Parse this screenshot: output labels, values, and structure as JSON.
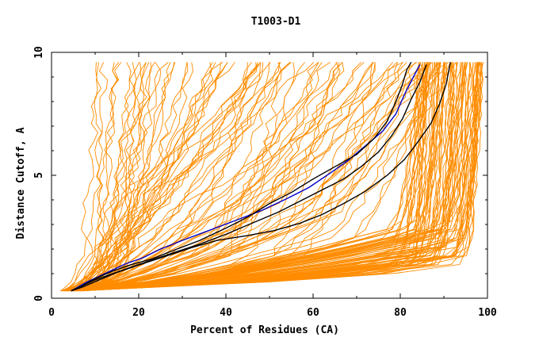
{
  "chart_data": {
    "type": "line",
    "title": "T1003-D1",
    "xlabel": "Percent of Residues (CA)",
    "ylabel": "Distance Cutoff, A",
    "xlim": [
      0,
      100
    ],
    "ylim": [
      0,
      10
    ],
    "x_ticks": [
      "0",
      "20",
      "40",
      "60",
      "80",
      "100"
    ],
    "y_ticks": [
      "0",
      "5",
      "10"
    ],
    "x_tick_values": [
      0,
      20,
      40,
      60,
      80,
      100
    ],
    "y_tick_values": [
      0,
      5,
      10
    ],
    "grid": false,
    "colors": {
      "background_series": "#ff8c00",
      "highlight_blue": "#0000cc",
      "highlight_black": "#000000",
      "axis": "#000000"
    },
    "background_series_description": "Many orange GDT curves (one per model); generated procedurally from representative shape parameters",
    "background_series_count": 170,
    "highlight_series": [
      {
        "name": "blue",
        "color": "#0000cc",
        "points": [
          [
            4.5,
            0.3
          ],
          [
            6,
            0.45
          ],
          [
            8,
            0.65
          ],
          [
            11,
            0.9
          ],
          [
            14,
            1.15
          ],
          [
            17,
            1.4
          ],
          [
            21,
            1.65
          ],
          [
            25,
            2.0
          ],
          [
            30,
            2.35
          ],
          [
            36,
            2.75
          ],
          [
            42,
            3.15
          ],
          [
            48,
            3.55
          ],
          [
            54,
            4.05
          ],
          [
            59,
            4.5
          ],
          [
            64,
            5.1
          ],
          [
            68,
            5.6
          ],
          [
            72,
            6.2
          ],
          [
            76,
            6.8
          ],
          [
            79,
            7.5
          ],
          [
            81,
            8.3
          ],
          [
            83,
            9.0
          ],
          [
            84.5,
            9.5
          ]
        ]
      },
      {
        "name": "black-1",
        "color": "#000000",
        "points": [
          [
            4.5,
            0.3
          ],
          [
            7,
            0.5
          ],
          [
            10,
            0.8
          ],
          [
            14,
            1.1
          ],
          [
            18,
            1.35
          ],
          [
            23,
            1.6
          ],
          [
            28,
            1.95
          ],
          [
            34,
            2.35
          ],
          [
            40,
            2.85
          ],
          [
            45,
            3.3
          ],
          [
            50,
            3.85
          ],
          [
            55,
            4.3
          ],
          [
            60,
            4.85
          ],
          [
            65,
            5.35
          ],
          [
            70,
            5.85
          ],
          [
            74,
            6.5
          ],
          [
            77,
            7.2
          ],
          [
            79,
            8.0
          ],
          [
            80.5,
            8.7
          ],
          [
            81.5,
            9.3
          ],
          [
            82.5,
            9.6
          ]
        ]
      },
      {
        "name": "black-2",
        "color": "#000000",
        "points": [
          [
            4.5,
            0.3
          ],
          [
            7,
            0.5
          ],
          [
            10,
            0.75
          ],
          [
            14,
            1.0
          ],
          [
            18,
            1.25
          ],
          [
            23,
            1.55
          ],
          [
            28,
            1.85
          ],
          [
            34,
            2.2
          ],
          [
            40,
            2.6
          ],
          [
            46,
            3.05
          ],
          [
            52,
            3.5
          ],
          [
            57,
            3.95
          ],
          [
            62,
            4.4
          ],
          [
            67,
            4.85
          ],
          [
            71,
            5.35
          ],
          [
            75,
            5.95
          ],
          [
            78,
            6.6
          ],
          [
            80.5,
            7.3
          ],
          [
            82.5,
            8.1
          ],
          [
            84.5,
            8.8
          ],
          [
            86,
            9.5
          ]
        ]
      },
      {
        "name": "black-3",
        "color": "#000000",
        "points": [
          [
            4.5,
            0.3
          ],
          [
            7,
            0.45
          ],
          [
            11,
            0.75
          ],
          [
            15,
            1.05
          ],
          [
            20,
            1.35
          ],
          [
            26,
            1.7
          ],
          [
            32,
            2.05
          ],
          [
            38,
            2.35
          ],
          [
            45,
            2.55
          ],
          [
            51,
            2.75
          ],
          [
            57,
            3.05
          ],
          [
            62,
            3.4
          ],
          [
            67,
            3.85
          ],
          [
            72,
            4.35
          ],
          [
            77,
            5.0
          ],
          [
            81,
            5.65
          ],
          [
            84,
            6.35
          ],
          [
            87,
            7.1
          ],
          [
            89,
            7.9
          ],
          [
            90.5,
            8.7
          ],
          [
            91.5,
            9.6
          ]
        ]
      }
    ]
  }
}
